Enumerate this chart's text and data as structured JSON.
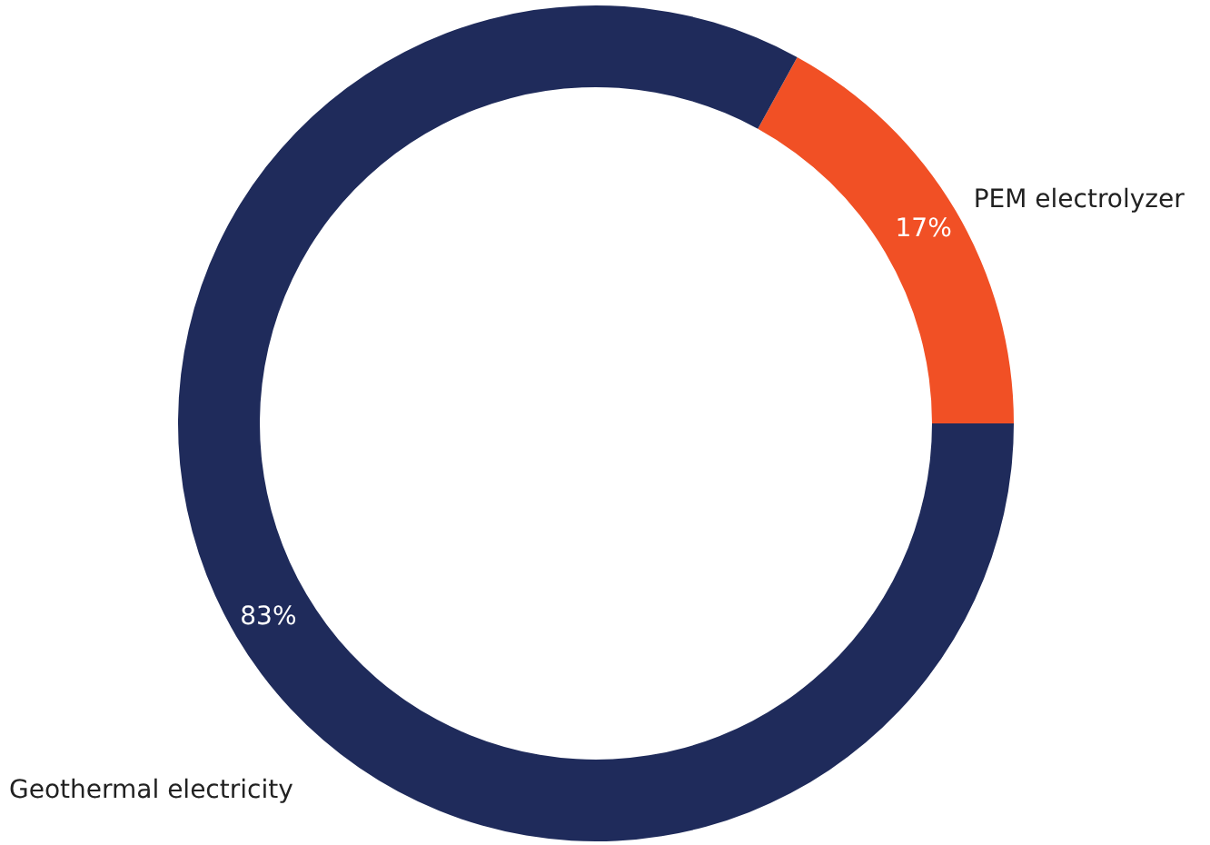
{
  "chart_data": {
    "type": "donut",
    "categories": [
      "PEM electrolyzer",
      "Geothermal electricity"
    ],
    "values": [
      17,
      83
    ],
    "colors": [
      "#f15025",
      "#1f2b5b"
    ],
    "value_labels": [
      "17%",
      "83%"
    ]
  }
}
